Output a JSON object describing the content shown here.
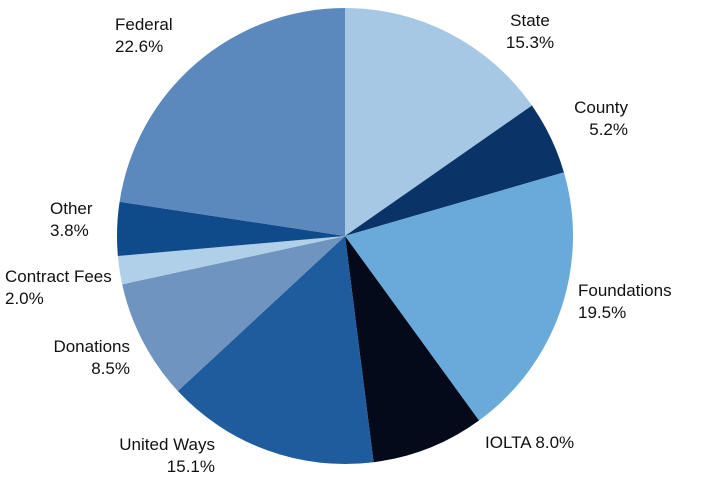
{
  "chart_data": {
    "type": "pie",
    "categories": [
      "State",
      "County",
      "Foundations",
      "IOLTA",
      "United Ways",
      "Donations",
      "Contract Fees",
      "Other",
      "Federal"
    ],
    "values": [
      15.3,
      5.2,
      19.5,
      8.0,
      15.1,
      8.5,
      2.0,
      3.8,
      22.6
    ],
    "value_labels": [
      "15.3%",
      "5.2%",
      "19.5%",
      "8.0%",
      "15.1%",
      "8.5%",
      "2.0%",
      "3.8%",
      "22.6%"
    ],
    "colors": [
      "#a6c8e4",
      "#0a3468",
      "#6aaadb",
      "#050a1a",
      "#1f5c9e",
      "#7094c0",
      "#b0cfe8",
      "#0f4a8a",
      "#5b88bd"
    ]
  }
}
